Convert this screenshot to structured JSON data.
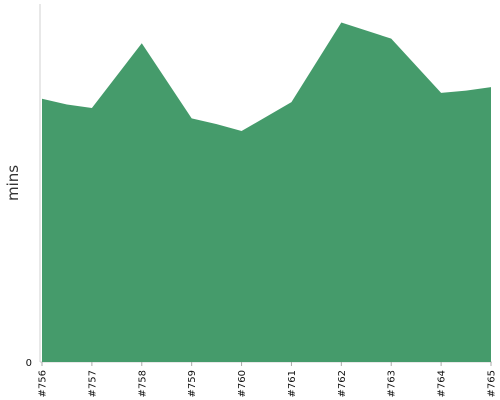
{
  "chart_data": {
    "type": "area",
    "title": "",
    "xlabel": "",
    "ylabel": "mins",
    "categories": [
      "#756",
      "#757",
      "#758",
      "#759",
      "#760",
      "#761",
      "#762",
      "#763",
      "#764",
      "#765"
    ],
    "points": [
      {
        "x": 0,
        "y": 22.8
      },
      {
        "x": 0.5,
        "y": 22.3
      },
      {
        "x": 1,
        "y": 22.0
      },
      {
        "x": 2,
        "y": 27.6
      },
      {
        "x": 3,
        "y": 21.1
      },
      {
        "x": 3.5,
        "y": 20.6
      },
      {
        "x": 4,
        "y": 20.0
      },
      {
        "x": 5,
        "y": 22.5
      },
      {
        "x": 6,
        "y": 29.4
      },
      {
        "x": 7,
        "y": 28.0
      },
      {
        "x": 8,
        "y": 23.3
      },
      {
        "x": 8.5,
        "y": 23.5
      },
      {
        "x": 9,
        "y": 23.8
      }
    ],
    "ylim": [
      0,
      31
    ],
    "yticks": [
      0
    ],
    "grid": false,
    "color": "#459b6b"
  }
}
